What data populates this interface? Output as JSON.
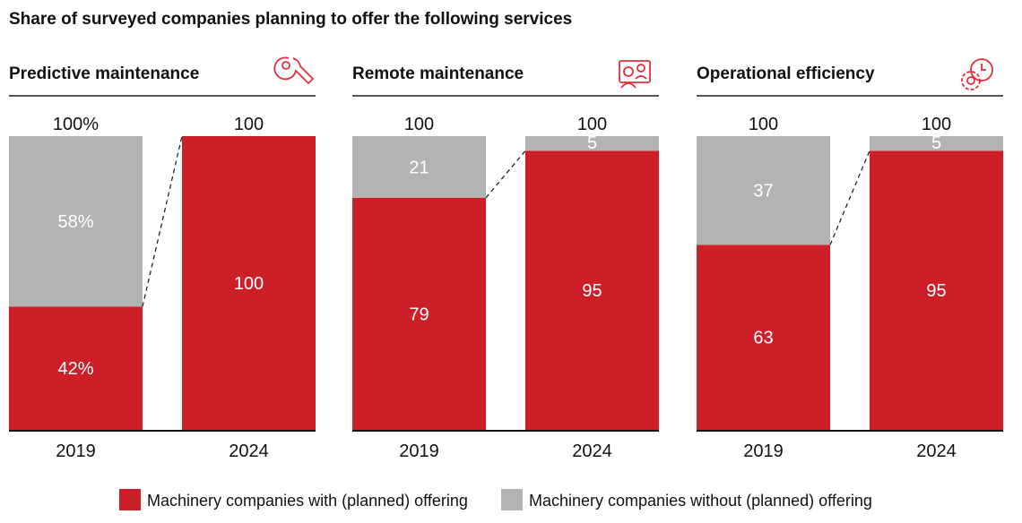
{
  "chart_data": {
    "type": "bar",
    "stacked": true,
    "title": "Share of surveyed companies planning to offer the following services",
    "colors": {
      "with": "#cc1f27",
      "without": "#b3b3b3",
      "accent": "#e0303a"
    },
    "legend": {
      "placement": "bottom",
      "items": [
        {
          "label": "Machinery companies with (planned) offering",
          "color": "#cc1f27"
        },
        {
          "label": "Machinery companies without (planned) offering",
          "color": "#b3b3b3"
        }
      ]
    },
    "ylim": [
      0,
      100
    ],
    "panels": [
      {
        "title": "Predictive maintenance",
        "icon": "wrench-icon",
        "categories": [
          "2019",
          "2024"
        ],
        "series": [
          {
            "name": "Machinery companies with (planned) offering",
            "values": [
              42,
              100
            ],
            "labels": [
              "42%",
              "100"
            ]
          },
          {
            "name": "Machinery companies without (planned) offering",
            "values": [
              58,
              0
            ],
            "labels": [
              "58%",
              ""
            ]
          }
        ],
        "totals": [
          "100%",
          "100"
        ]
      },
      {
        "title": "Remote maintenance",
        "icon": "remote-meeting-icon",
        "categories": [
          "2019",
          "2024"
        ],
        "series": [
          {
            "name": "Machinery companies with (planned) offering",
            "values": [
              79,
              95
            ],
            "labels": [
              "79",
              "95"
            ]
          },
          {
            "name": "Machinery companies without (planned) offering",
            "values": [
              21,
              5
            ],
            "labels": [
              "21",
              "5"
            ]
          }
        ],
        "totals": [
          "100",
          "100"
        ]
      },
      {
        "title": "Operational efficiency",
        "icon": "gear-clock-icon",
        "categories": [
          "2019",
          "2024"
        ],
        "series": [
          {
            "name": "Machinery companies with (planned) offering",
            "values": [
              63,
              95
            ],
            "labels": [
              "63",
              "95"
            ]
          },
          {
            "name": "Machinery companies without (planned) offering",
            "values": [
              37,
              5
            ],
            "labels": [
              "37",
              "5"
            ]
          }
        ],
        "totals": [
          "100",
          "100"
        ]
      }
    ]
  }
}
